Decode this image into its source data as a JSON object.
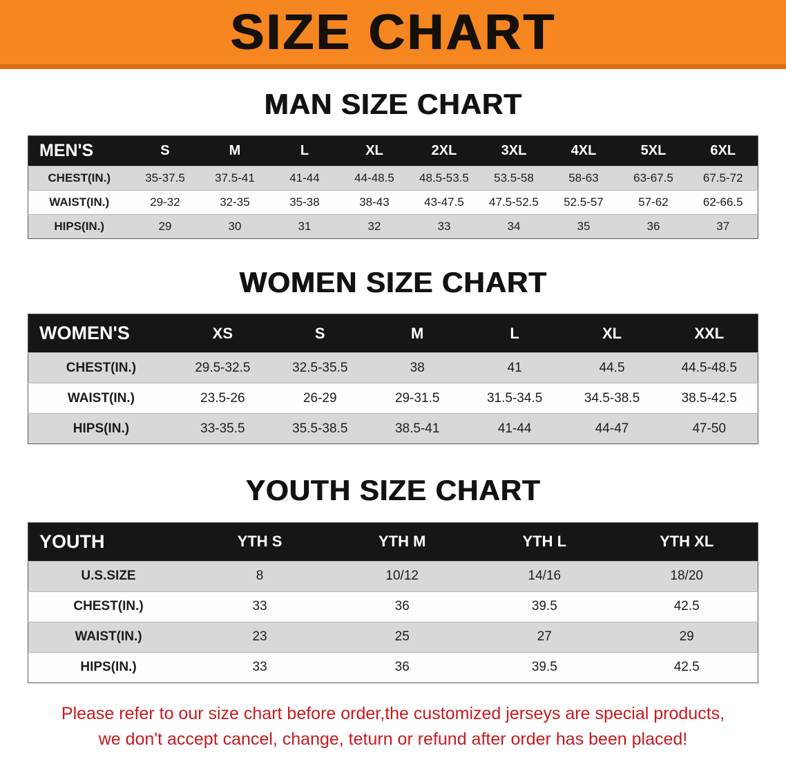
{
  "banner": {
    "title": "SIZE CHART",
    "bg_color": "#f6861f"
  },
  "sections": [
    {
      "heading": "MAN SIZE CHART",
      "table": {
        "label": "MEN'S",
        "columns": [
          "S",
          "M",
          "L",
          "XL",
          "2XL",
          "3XL",
          "4XL",
          "5XL",
          "6XL"
        ],
        "rows": [
          {
            "label": "CHEST(IN.)",
            "values": [
              "35-37.5",
              "37.5-41",
              "41-44",
              "44-48.5",
              "48.5-53.5",
              "53.5-58",
              "58-63",
              "63-67.5",
              "67.5-72"
            ]
          },
          {
            "label": "WAIST(IN.)",
            "values": [
              "29-32",
              "32-35",
              "35-38",
              "38-43",
              "43-47.5",
              "47.5-52.5",
              "52.5-57",
              "57-62",
              "62-66.5"
            ]
          },
          {
            "label": "HIPS(IN.)",
            "values": [
              "29",
              "30",
              "31",
              "32",
              "33",
              "34",
              "35",
              "36",
              "37"
            ]
          }
        ]
      }
    },
    {
      "heading": "WOMEN SIZE CHART",
      "table": {
        "label": "WOMEN'S",
        "columns": [
          "XS",
          "S",
          "M",
          "L",
          "XL",
          "XXL"
        ],
        "rows": [
          {
            "label": "CHEST(IN.)",
            "values": [
              "29.5-32.5",
              "32.5-35.5",
              "38",
              "41",
              "44.5",
              "44.5-48.5"
            ]
          },
          {
            "label": "WAIST(IN.)",
            "values": [
              "23.5-26",
              "26-29",
              "29-31.5",
              "31.5-34.5",
              "34.5-38.5",
              "38.5-42.5"
            ]
          },
          {
            "label": "HIPS(IN.)",
            "values": [
              "33-35.5",
              "35.5-38.5",
              "38.5-41",
              "41-44",
              "44-47",
              "47-50"
            ]
          }
        ]
      }
    },
    {
      "heading": "YOUTH SIZE CHART",
      "table": {
        "label": "YOUTH",
        "columns": [
          "YTH S",
          "YTH M",
          "YTH L",
          "YTH XL"
        ],
        "rows": [
          {
            "label": "U.S.SIZE",
            "values": [
              "8",
              "10/12",
              "14/16",
              "18/20"
            ]
          },
          {
            "label": "CHEST(IN.)",
            "values": [
              "33",
              "36",
              "39.5",
              "42.5"
            ]
          },
          {
            "label": "WAIST(IN.)",
            "values": [
              "23",
              "25",
              "27",
              "29"
            ]
          },
          {
            "label": "HIPS(IN.)",
            "values": [
              "33",
              "36",
              "39.5",
              "42.5"
            ]
          }
        ]
      }
    }
  ],
  "footer": {
    "line1": "Please refer to our size chart before order,the customized jerseys are special products,",
    "line2": "we don't accept cancel, change, teturn or refund after order has been placed!",
    "text_color": "#c9191d"
  }
}
